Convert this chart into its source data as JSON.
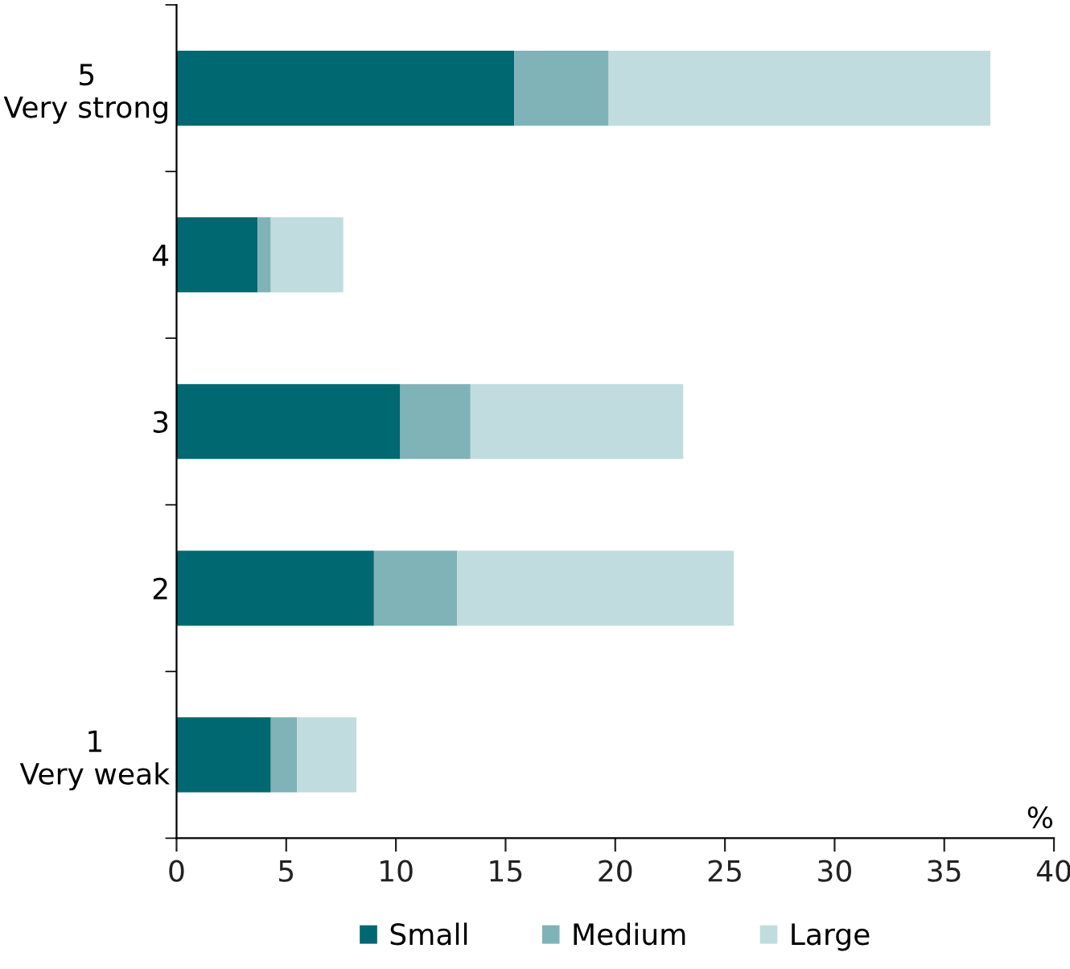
{
  "chart_data": {
    "type": "bar",
    "orientation": "horizontal",
    "stacked": true,
    "categories": [
      "5\nVery strong",
      "4",
      "3",
      "2",
      "1\nVery weak"
    ],
    "series": [
      {
        "name": "Small",
        "color": "#006870",
        "values": [
          15.4,
          3.7,
          10.2,
          9.0,
          4.3
        ]
      },
      {
        "name": "Medium",
        "color": "#7fb3b7",
        "values": [
          4.3,
          0.6,
          3.2,
          3.8,
          1.2
        ]
      },
      {
        "name": "Large",
        "color": "#c0dcdf",
        "values": [
          17.4,
          3.3,
          9.7,
          12.6,
          2.7
        ]
      }
    ],
    "xlabel": "%",
    "xlim": [
      0,
      40
    ],
    "xticks": [
      0,
      5,
      10,
      15,
      20,
      25,
      30,
      35,
      40
    ],
    "grid": false,
    "legend": "bottom"
  }
}
